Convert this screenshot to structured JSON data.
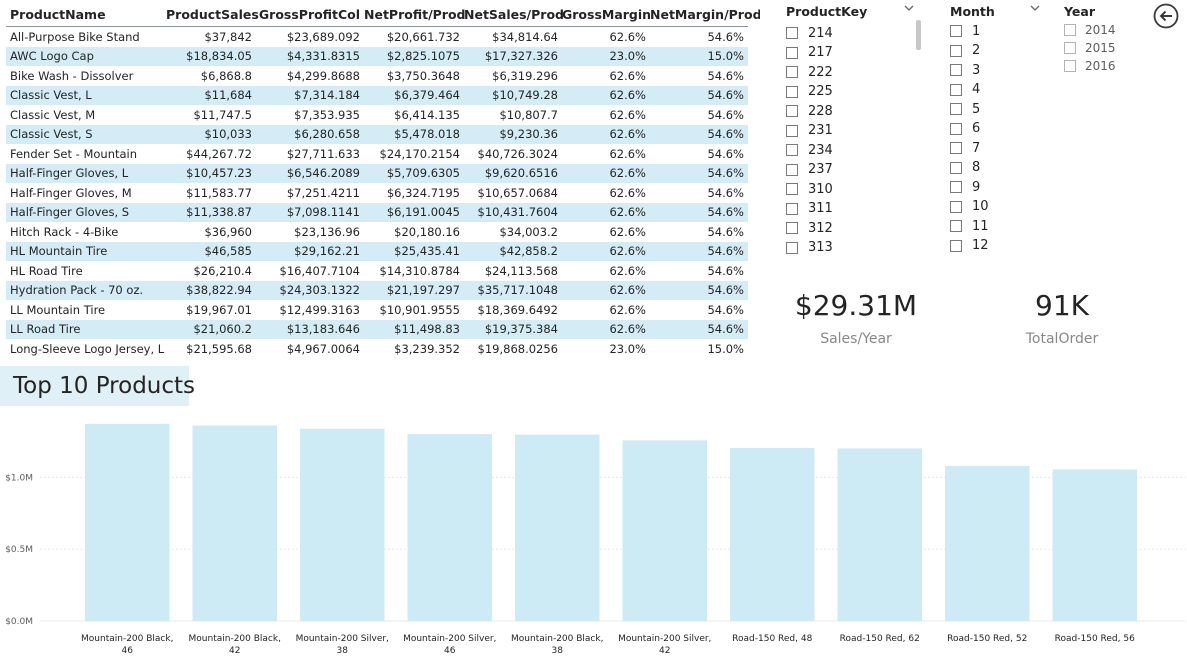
{
  "table": {
    "columns": [
      "ProductName",
      "ProductSales",
      "GrossProfitCol",
      "NetProfit/Prod",
      "NetSales/Prod",
      "GrossMargin",
      "NetMargin/Prod"
    ],
    "rows": [
      [
        "All-Purpose Bike Stand",
        "$37,842",
        "$23,689.092",
        "$20,661.732",
        "$34,814.64",
        "62.6%",
        "54.6%"
      ],
      [
        "AWC Logo Cap",
        "$18,834.05",
        "$4,331.8315",
        "$2,825.1075",
        "$17,327.326",
        "23.0%",
        "15.0%"
      ],
      [
        "Bike Wash - Dissolver",
        "$6,868.8",
        "$4,299.8688",
        "$3,750.3648",
        "$6,319.296",
        "62.6%",
        "54.6%"
      ],
      [
        "Classic Vest, L",
        "$11,684",
        "$7,314.184",
        "$6,379.464",
        "$10,749.28",
        "62.6%",
        "54.6%"
      ],
      [
        "Classic Vest, M",
        "$11,747.5",
        "$7,353.935",
        "$6,414.135",
        "$10,807.7",
        "62.6%",
        "54.6%"
      ],
      [
        "Classic Vest, S",
        "$10,033",
        "$6,280.658",
        "$5,478.018",
        "$9,230.36",
        "62.6%",
        "54.6%"
      ],
      [
        "Fender Set - Mountain",
        "$44,267.72",
        "$27,711.633",
        "$24,170.2154",
        "$40,726.3024",
        "62.6%",
        "54.6%"
      ],
      [
        "Half-Finger Gloves, L",
        "$10,457.23",
        "$6,546.2089",
        "$5,709.6305",
        "$9,620.6516",
        "62.6%",
        "54.6%"
      ],
      [
        "Half-Finger Gloves, M",
        "$11,583.77",
        "$7,251.4211",
        "$6,324.7195",
        "$10,657.0684",
        "62.6%",
        "54.6%"
      ],
      [
        "Half-Finger Gloves, S",
        "$11,338.87",
        "$7,098.1141",
        "$6,191.0045",
        "$10,431.7604",
        "62.6%",
        "54.6%"
      ],
      [
        "Hitch Rack - 4-Bike",
        "$36,960",
        "$23,136.96",
        "$20,180.16",
        "$34,003.2",
        "62.6%",
        "54.6%"
      ],
      [
        "HL Mountain Tire",
        "$46,585",
        "$29,162.21",
        "$25,435.41",
        "$42,858.2",
        "62.6%",
        "54.6%"
      ],
      [
        "HL Road Tire",
        "$26,210.4",
        "$16,407.7104",
        "$14,310.8784",
        "$24,113.568",
        "62.6%",
        "54.6%"
      ],
      [
        "Hydration Pack - 70 oz.",
        "$38,822.94",
        "$24,303.1322",
        "$21,197.297",
        "$35,717.1048",
        "62.6%",
        "54.6%"
      ],
      [
        "LL Mountain Tire",
        "$19,967.01",
        "$12,499.3163",
        "$10,901.9555",
        "$18,369.6492",
        "62.6%",
        "54.6%"
      ],
      [
        "LL Road Tire",
        "$21,060.2",
        "$13,183.646",
        "$11,498.83",
        "$19,375.384",
        "62.6%",
        "54.6%"
      ],
      [
        "Long-Sleeve Logo Jersey, L",
        "$21,595.68",
        "$4,967.0064",
        "$3,239.352",
        "$19,868.0256",
        "23.0%",
        "15.0%"
      ]
    ]
  },
  "slicers": {
    "productkey": {
      "title": "ProductKey",
      "items": [
        "214",
        "217",
        "222",
        "225",
        "228",
        "231",
        "234",
        "237",
        "310",
        "311",
        "312",
        "313"
      ]
    },
    "month": {
      "title": "Month",
      "items": [
        "1",
        "2",
        "3",
        "4",
        "5",
        "6",
        "7",
        "8",
        "9",
        "10",
        "11",
        "12"
      ]
    },
    "year": {
      "title": "Year",
      "items": [
        "2014",
        "2015",
        "2016"
      ]
    }
  },
  "kpis": {
    "sales": {
      "value": "$29.31M",
      "label": "Sales/Year"
    },
    "orders": {
      "value": "91K",
      "label": "TotalOrder"
    }
  },
  "icons": {
    "back": "back-arrow-icon",
    "dropdown": "chevron-down-icon"
  },
  "colors": {
    "bar": "#cdebf5",
    "row_alt": "#d3ecf6",
    "accent": "#dff0f7"
  },
  "chart_data": {
    "type": "bar",
    "title": "Top 10 Products",
    "categories": [
      "Mountain-200 Black, 46",
      "Mountain-200 Black, 42",
      "Mountain-200 Silver, 38",
      "Mountain-200 Silver, 46",
      "Mountain-200 Black, 38",
      "Mountain-200 Silver, 42",
      "Road-150 Red, 48",
      "Road-150 Red, 62",
      "Road-150 Red, 52",
      "Road-150 Red, 56"
    ],
    "values": [
      1373000,
      1361000,
      1339000,
      1302000,
      1298000,
      1258000,
      1205000,
      1202000,
      1080000,
      1056000
    ],
    "yticks": [
      "$0.0M",
      "$0.5M",
      "$1.0M"
    ],
    "ytick_values": [
      0,
      500000,
      1000000
    ],
    "ylim": [
      0,
      1400000
    ],
    "grid": true
  }
}
